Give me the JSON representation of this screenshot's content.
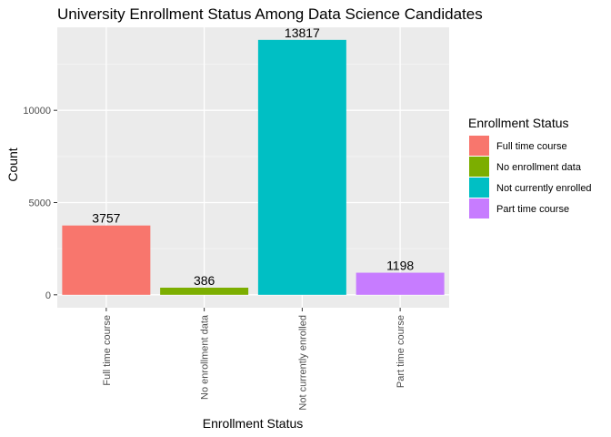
{
  "chart_data": {
    "type": "bar",
    "title": "University Enrollment Status Among Data Science Candidates",
    "xlabel": "Enrollment Status",
    "ylabel": "Count",
    "categories": [
      "Full time course",
      "No enrollment data",
      "Not currently enrolled",
      "Part time course"
    ],
    "values": [
      3757,
      386,
      13817,
      1198
    ],
    "colors": [
      "#F8766D",
      "#7CAE00",
      "#00BFC4",
      "#C77CFF"
    ],
    "ylim": [
      -700,
      14500
    ],
    "yticks": [
      0,
      5000,
      10000
    ],
    "grid": true,
    "legend": {
      "title": "Enrollment Status",
      "placement": "right",
      "entries": [
        "Full time course",
        "No enrollment data",
        "Not currently enrolled",
        "Part time course"
      ]
    }
  }
}
